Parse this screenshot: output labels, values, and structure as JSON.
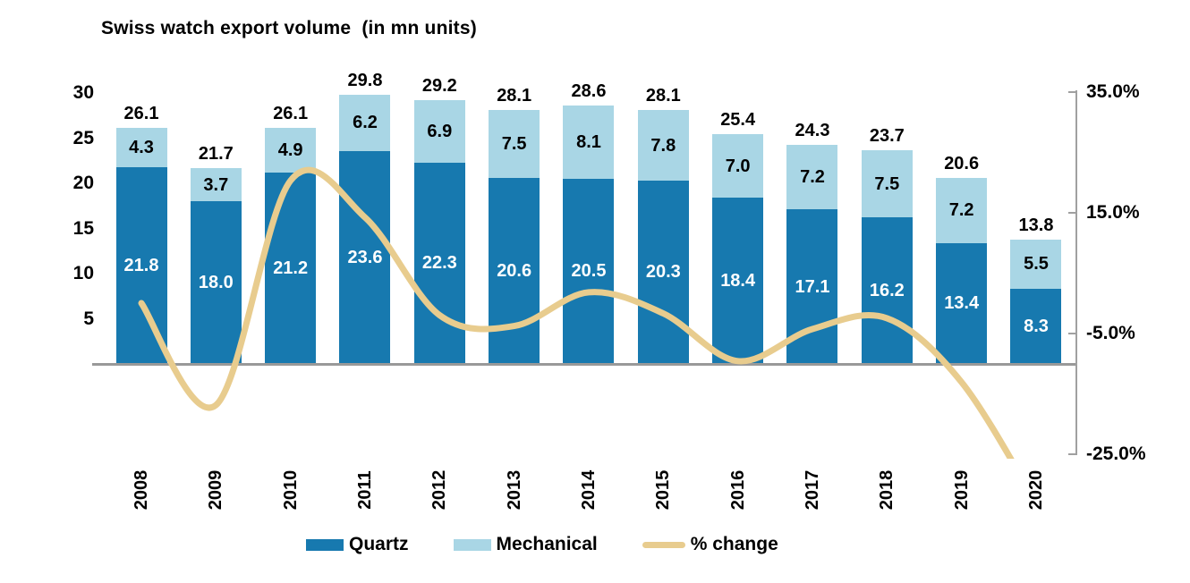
{
  "title": "Swiss watch export volume  (in mn units)",
  "colors": {
    "quartz": "#1779AF",
    "mechanical": "#A9D6E5",
    "pct_line": "#E8CC8E",
    "axis": "#999999",
    "text": "#000000",
    "bar_value_text": "#FFFFFF"
  },
  "chart_data": {
    "type": "bar",
    "subtype": "stacked-column-with-smoothed-line",
    "title": "Swiss watch export volume  (in mn units)",
    "categories": [
      "2008",
      "2009",
      "2010",
      "2011",
      "2012",
      "2013",
      "2014",
      "2015",
      "2016",
      "2017",
      "2018",
      "2019",
      "2020"
    ],
    "series": [
      {
        "name": "Quartz",
        "type": "bar",
        "color": "#1779AF",
        "values": [
          21.8,
          18.0,
          21.2,
          23.6,
          22.3,
          20.6,
          20.5,
          20.3,
          18.4,
          17.1,
          16.2,
          13.4,
          8.3
        ]
      },
      {
        "name": "Mechanical",
        "type": "bar",
        "color": "#A9D6E5",
        "values": [
          4.3,
          3.7,
          4.9,
          6.2,
          6.9,
          7.5,
          8.1,
          7.8,
          7.0,
          7.2,
          7.5,
          7.2,
          5.5
        ]
      },
      {
        "name": "% change",
        "type": "line",
        "color": "#E8CC8E",
        "values": [
          0.0,
          -16.9,
          20.3,
          14.2,
          -2.0,
          -3.8,
          1.8,
          -1.7,
          -9.6,
          -4.3,
          -2.5,
          -13.1,
          -33.0
        ]
      }
    ],
    "totals": [
      26.1,
      21.7,
      26.1,
      29.8,
      29.2,
      28.1,
      28.6,
      28.1,
      25.4,
      24.3,
      23.7,
      20.6,
      13.8
    ],
    "left_axis": {
      "ticks": [
        30,
        25,
        20,
        15,
        10,
        5
      ],
      "min": 0,
      "max": 30,
      "gridlines": false
    },
    "right_axis": {
      "tick_labels": [
        "35.0%",
        "15.0%",
        "-5.0%",
        "-25.0%"
      ],
      "tick_values": [
        35,
        15,
        -5,
        -25
      ],
      "min": -25,
      "max": 35
    },
    "legend": [
      {
        "label": "Quartz",
        "swatch": "rect",
        "color": "#1779AF"
      },
      {
        "label": "Mechanical",
        "swatch": "rect",
        "color": "#A9D6E5"
      },
      {
        "label": "% change",
        "swatch": "line",
        "color": "#E8CC8E"
      }
    ],
    "legend_position": "bottom"
  }
}
